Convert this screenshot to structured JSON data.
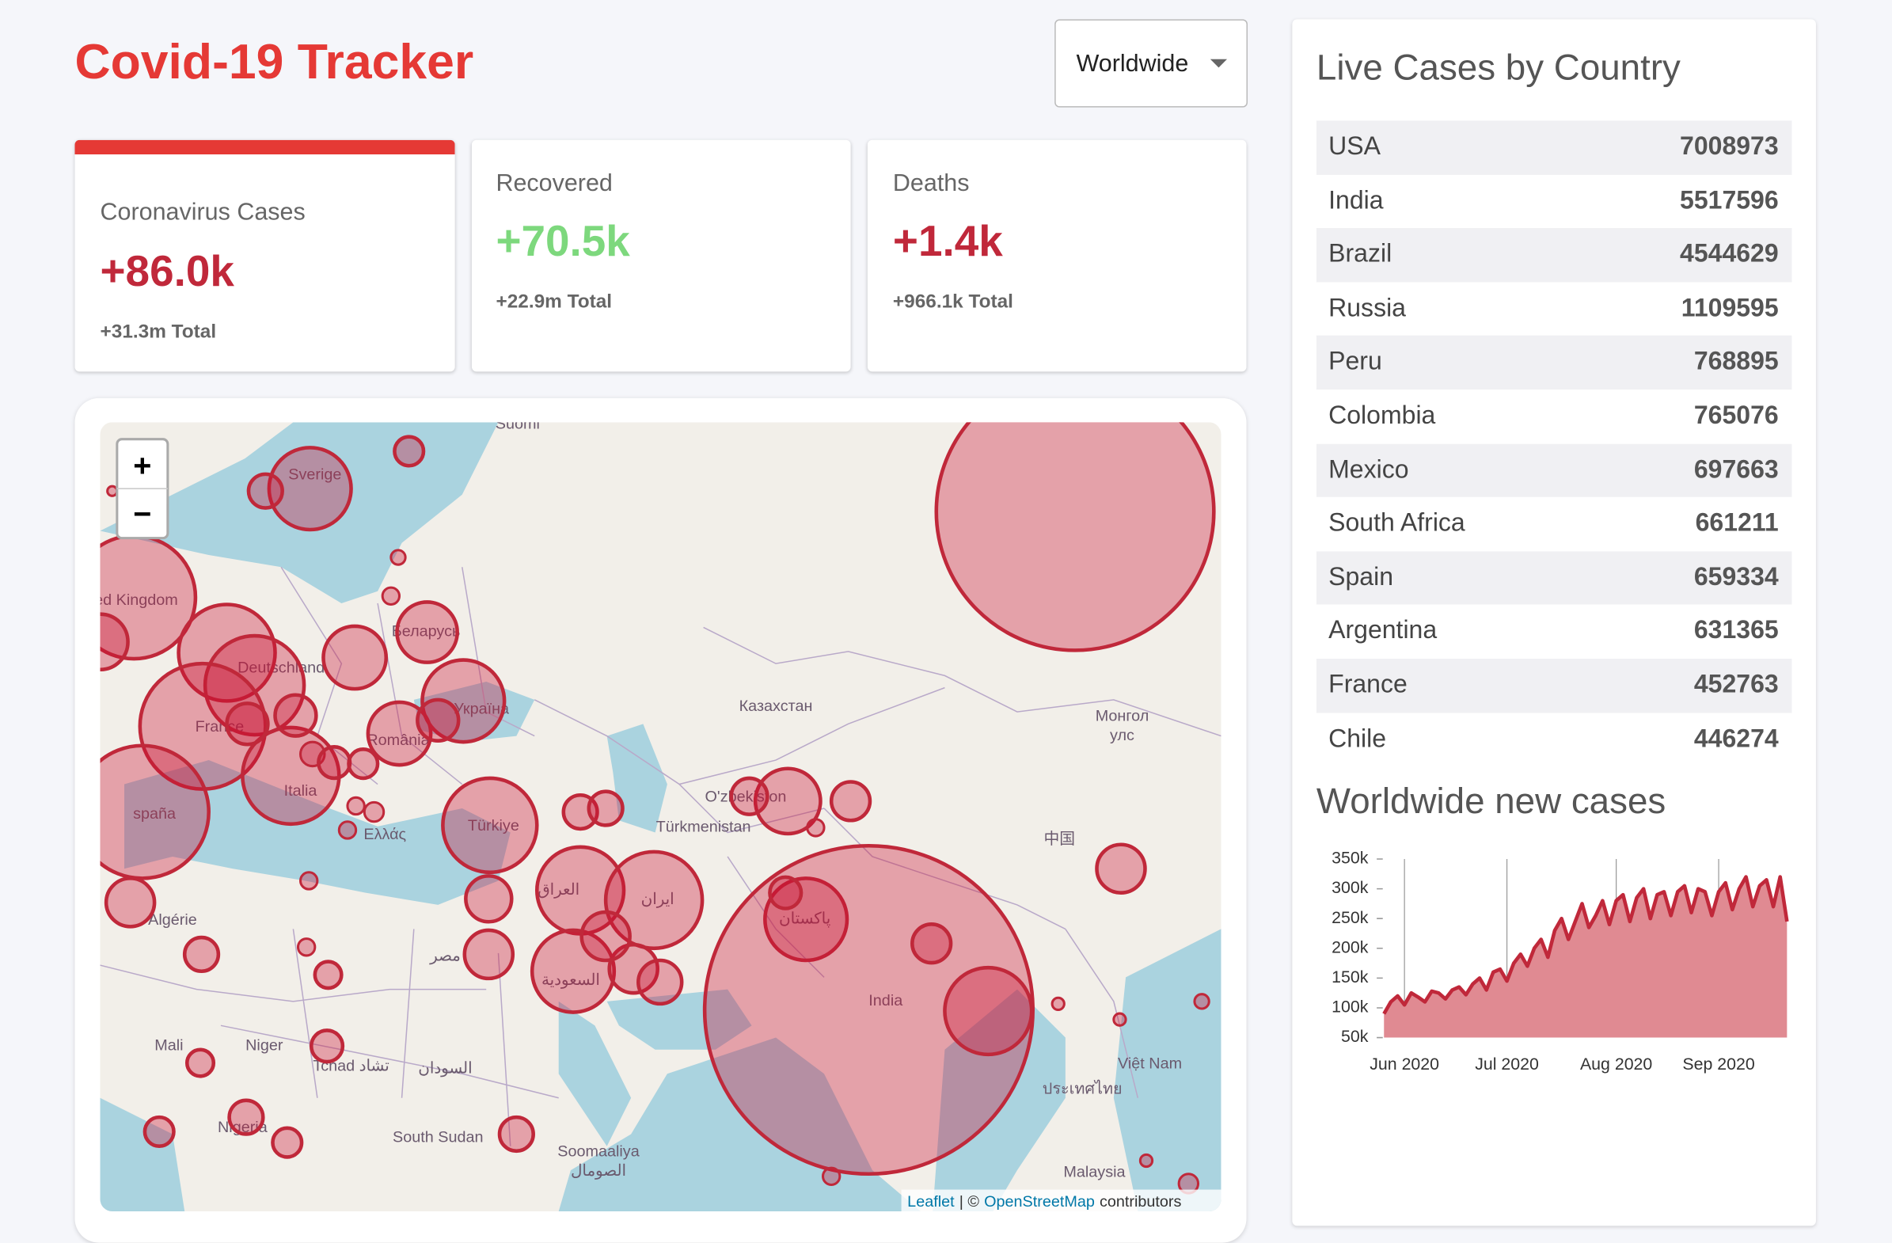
{
  "header": {
    "title": "Covid-19 Tracker",
    "dropdown": "Worldwide"
  },
  "cards": [
    {
      "title": "Coronavirus Cases",
      "today": "+86.0k",
      "total": "+31.3m Total"
    },
    {
      "title": "Recovered",
      "today": "+70.5k",
      "total": "+22.9m Total"
    },
    {
      "title": "Deaths",
      "today": "+1.4k",
      "total": "+966.1k Total"
    }
  ],
  "map": {
    "zoom_in": "+",
    "zoom_out": "−",
    "attribution": {
      "leaflet": "Leaflet",
      "separator": "| ©",
      "osm": "OpenStreetMap",
      "contributors": "contributors"
    },
    "labels": [
      "Suomi",
      "Sverige",
      "ted Kingdom",
      "Deutschland",
      "France",
      "spaña",
      "Italia",
      "Беларусь",
      "Україна",
      "România",
      "Ελλάς",
      "Türkiye",
      "Казахстан",
      "Монгол",
      "улс",
      "O'zbekiston",
      "Türkmenistan",
      "العراق",
      "ایران",
      "پاکستان",
      "India",
      "中国",
      "مصر",
      "السعودية",
      "Algérie",
      "Mali",
      "Niger",
      "Tchad تشاد",
      "السودان",
      "Nigeria",
      "South Sudan",
      "Soomaaliya",
      "الصومال",
      "Việt Nam",
      "ประเทศไทย",
      "Malaysia"
    ]
  },
  "sidebar": {
    "title": "Live Cases by Country",
    "countries": [
      {
        "name": "USA",
        "cases": "7008973"
      },
      {
        "name": "India",
        "cases": "5517596"
      },
      {
        "name": "Brazil",
        "cases": "4544629"
      },
      {
        "name": "Russia",
        "cases": "1109595"
      },
      {
        "name": "Peru",
        "cases": "768895"
      },
      {
        "name": "Colombia",
        "cases": "765076"
      },
      {
        "name": "Mexico",
        "cases": "697663"
      },
      {
        "name": "South Africa",
        "cases": "661211"
      },
      {
        "name": "Spain",
        "cases": "659334"
      },
      {
        "name": "Argentina",
        "cases": "631365"
      },
      {
        "name": "France",
        "cases": "452763"
      },
      {
        "name": "Chile",
        "cases": "446274"
      }
    ]
  },
  "chart_data": {
    "type": "line",
    "title": "Worldwide new cases",
    "color": "#c0283a",
    "fill": "#e08a92",
    "grid": true,
    "categories": [
      null,
      null,
      null,
      "Jun 2020",
      null,
      null,
      null,
      null,
      null,
      null,
      null,
      null,
      null,
      null,
      null,
      null,
      null,
      null,
      "Jul 2020",
      null,
      null,
      null,
      null,
      null,
      null,
      null,
      null,
      null,
      null,
      null,
      null,
      null,
      null,
      null,
      "Aug 2020",
      null,
      null,
      null,
      null,
      null,
      null,
      null,
      null,
      null,
      null,
      null,
      null,
      null,
      null,
      "Sep 2020",
      null,
      null,
      null,
      null,
      null,
      null,
      null,
      null,
      null,
      null
    ],
    "values": [
      90000,
      110000,
      120000,
      105000,
      125000,
      118000,
      110000,
      128000,
      125000,
      115000,
      130000,
      135000,
      122000,
      140000,
      150000,
      130000,
      160000,
      165000,
      145000,
      175000,
      190000,
      170000,
      200000,
      215000,
      185000,
      230000,
      250000,
      215000,
      245000,
      275000,
      235000,
      255000,
      280000,
      240000,
      280000,
      290000,
      245000,
      285000,
      300000,
      250000,
      290000,
      295000,
      255000,
      295000,
      305000,
      260000,
      300000,
      295000,
      255000,
      295000,
      310000,
      265000,
      300000,
      320000,
      270000,
      305000,
      315000,
      270000,
      320000,
      245000
    ],
    "ylim": [
      50000,
      350000
    ],
    "yticks": [
      {
        "value": 50000,
        "label": "50k"
      },
      {
        "value": 100000,
        "label": "100k"
      },
      {
        "value": 150000,
        "label": "150k"
      },
      {
        "value": 200000,
        "label": "200k"
      },
      {
        "value": 250000,
        "label": "250k"
      },
      {
        "value": 300000,
        "label": "300k"
      },
      {
        "value": 350000,
        "label": "350k"
      }
    ]
  }
}
